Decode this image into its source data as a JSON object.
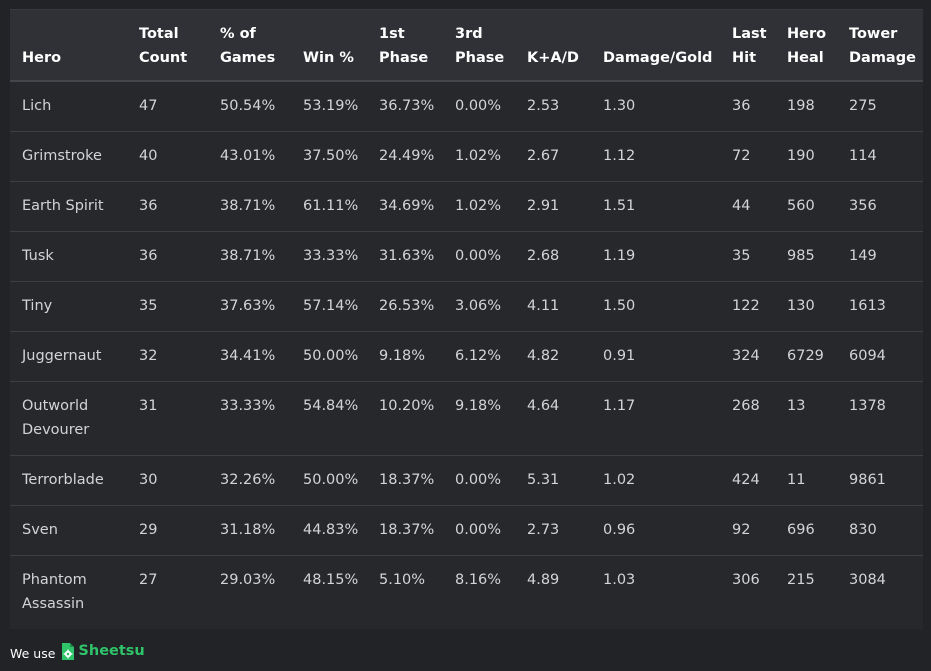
{
  "table": {
    "headers": [
      [
        "Hero"
      ],
      [
        "Total",
        "Count"
      ],
      [
        "% of",
        "Games"
      ],
      [
        "Win %"
      ],
      [
        "1st",
        "Phase"
      ],
      [
        "3rd",
        "Phase"
      ],
      [
        "K+A/D"
      ],
      [
        "Damage/Gold"
      ],
      [
        "Last",
        "Hit"
      ],
      [
        "Hero",
        "Heal"
      ],
      [
        "Tower",
        "Damage"
      ]
    ],
    "rows": [
      [
        [
          "Lich"
        ],
        "47",
        "50.54%",
        "53.19%",
        "36.73%",
        "0.00%",
        "2.53",
        "1.30",
        "36",
        "198",
        "275"
      ],
      [
        [
          "Grimstroke"
        ],
        "40",
        "43.01%",
        "37.50%",
        "24.49%",
        "1.02%",
        "2.67",
        "1.12",
        "72",
        "190",
        "114"
      ],
      [
        [
          "Earth Spirit"
        ],
        "36",
        "38.71%",
        "61.11%",
        "34.69%",
        "1.02%",
        "2.91",
        "1.51",
        "44",
        "560",
        "356"
      ],
      [
        [
          "Tusk"
        ],
        "36",
        "38.71%",
        "33.33%",
        "31.63%",
        "0.00%",
        "2.68",
        "1.19",
        "35",
        "985",
        "149"
      ],
      [
        [
          "Tiny"
        ],
        "35",
        "37.63%",
        "57.14%",
        "26.53%",
        "3.06%",
        "4.11",
        "1.50",
        "122",
        "130",
        "1613"
      ],
      [
        [
          "Juggernaut"
        ],
        "32",
        "34.41%",
        "50.00%",
        "9.18%",
        "6.12%",
        "4.82",
        "0.91",
        "324",
        "6729",
        "6094"
      ],
      [
        [
          "Outworld",
          "Devourer"
        ],
        "31",
        "33.33%",
        "54.84%",
        "10.20%",
        "9.18%",
        "4.64",
        "1.17",
        "268",
        "13",
        "1378"
      ],
      [
        [
          "Terrorblade"
        ],
        "30",
        "32.26%",
        "50.00%",
        "18.37%",
        "0.00%",
        "5.31",
        "1.02",
        "424",
        "11",
        "9861"
      ],
      [
        [
          "Sven"
        ],
        "29",
        "31.18%",
        "44.83%",
        "18.37%",
        "0.00%",
        "2.73",
        "0.96",
        "92",
        "696",
        "830"
      ],
      [
        [
          "Phantom",
          "Assassin"
        ],
        "27",
        "29.03%",
        "48.15%",
        "5.10%",
        "8.16%",
        "4.89",
        "1.03",
        "306",
        "215",
        "3084"
      ]
    ]
  },
  "footer": {
    "prefix": "We use",
    "brand": "Sheetsu",
    "brand_icon": "sheetsu-logo-icon",
    "brand_color": "#2fc36a"
  }
}
